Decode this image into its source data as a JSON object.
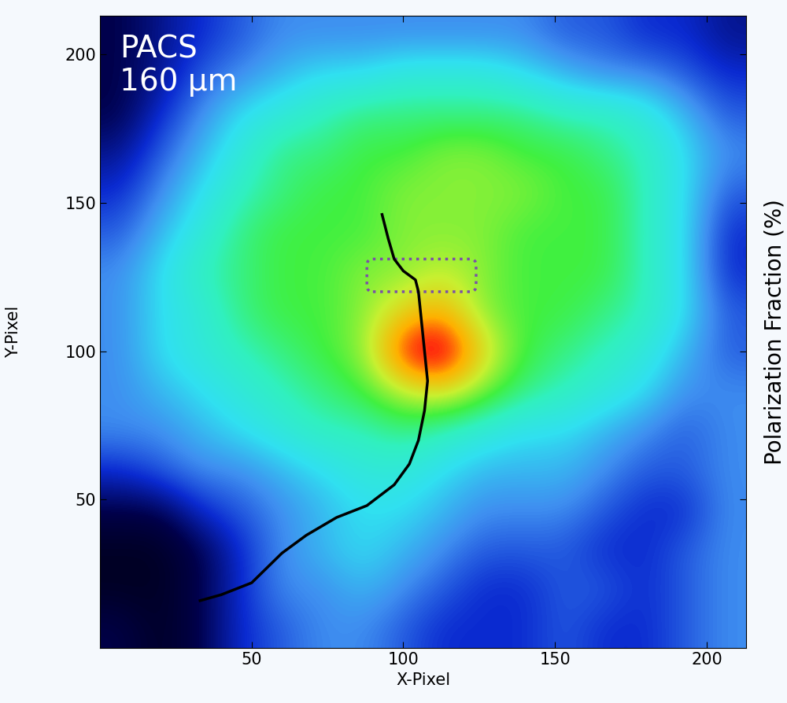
{
  "chart_data": {
    "type": "heatmap",
    "annotation": "PACS\n160 µm",
    "x_label": "X-Pixel",
    "y_label": "Y-Pixel",
    "right_label": "Polarization Fraction (%)",
    "xlim": [
      0,
      213
    ],
    "ylim": [
      0,
      213
    ],
    "xticks": [
      50,
      100,
      150,
      200
    ],
    "yticks": [
      50,
      100,
      150,
      200
    ],
    "color_range": [
      0,
      10
    ],
    "cells": [
      [
        1,
        0.5,
        1,
        2,
        2.5,
        3,
        3,
        2.5,
        2,
        2,
        2,
        2.5,
        2,
        2,
        2.5,
        3
      ],
      [
        0.5,
        0.5,
        1,
        2,
        3,
        3,
        3.5,
        3,
        2.5,
        2,
        2,
        2.5,
        2.5,
        2,
        2.5,
        3
      ],
      [
        0.5,
        0.5,
        1,
        2,
        3,
        3.5,
        4,
        3.5,
        3,
        2.5,
        2.5,
        2.5,
        2,
        2,
        2.5,
        3
      ],
      [
        1,
        1,
        2,
        2.5,
        3,
        3.5,
        4,
        4,
        3.5,
        3,
        3,
        3,
        2.5,
        2,
        2,
        3
      ],
      [
        2,
        2.5,
        3,
        3,
        3.5,
        4,
        4.5,
        4.5,
        4,
        3.5,
        3.5,
        3.5,
        3,
        2.5,
        2.5,
        3
      ],
      [
        3,
        3,
        3.5,
        4,
        4.5,
        5,
        5,
        5.5,
        5,
        4.5,
        4,
        4,
        3.5,
        3,
        2.5,
        3
      ],
      [
        3,
        3.5,
        4,
        4.5,
        5,
        5.5,
        6,
        7,
        7.5,
        6.5,
        5.5,
        5,
        4.5,
        4,
        3,
        3
      ],
      [
        3,
        4,
        4.5,
        5,
        5.5,
        6,
        6.5,
        9,
        9.5,
        7.5,
        6,
        5.5,
        5,
        4.5,
        3.5,
        2.5
      ],
      [
        3,
        4,
        4.5,
        5.5,
        6,
        6,
        6.5,
        7.5,
        8,
        6.5,
        6,
        6,
        5.5,
        5,
        4,
        2.5
      ],
      [
        3,
        4,
        5,
        5.5,
        6,
        6,
        6.5,
        6.5,
        7,
        6.5,
        6,
        6,
        6,
        5,
        4,
        2
      ],
      [
        2.5,
        3.5,
        4.5,
        5.5,
        6,
        6,
        6,
        6.5,
        6.5,
        6.5,
        6,
        6,
        6,
        5,
        4,
        2
      ],
      [
        2,
        3,
        4,
        5,
        5.5,
        6,
        6,
        6.5,
        6.5,
        6.5,
        6.5,
        6,
        6,
        5,
        4,
        2.5
      ],
      [
        1.5,
        2.5,
        3.5,
        4.5,
        5.5,
        5.5,
        6,
        6,
        6.5,
        6.5,
        6,
        6,
        5.5,
        5,
        4,
        3
      ],
      [
        1,
        2,
        3,
        4,
        4.5,
        5,
        5.5,
        5.5,
        5.5,
        5.5,
        5.5,
        5,
        5,
        4.5,
        3.5,
        2.5
      ],
      [
        1,
        1.5,
        2.5,
        3,
        3.5,
        4,
        4,
        4.5,
        4.5,
        4.5,
        4,
        3.5,
        3,
        3,
        2.5,
        2
      ],
      [
        1,
        1.5,
        2,
        2.5,
        3,
        3,
        3,
        3,
        3,
        3,
        3,
        2.5,
        2.5,
        2,
        2,
        1.5
      ]
    ],
    "line": {
      "color": "#000000",
      "x": [
        93,
        95,
        97,
        100,
        104,
        105,
        106,
        107,
        108,
        107,
        105,
        102,
        97,
        88,
        78,
        68,
        60,
        50,
        40,
        33
      ],
      "y": [
        146,
        138,
        131,
        127,
        124,
        120,
        110,
        100,
        90,
        80,
        70,
        62,
        55,
        48,
        44,
        38,
        32,
        22,
        18,
        16
      ]
    },
    "region": {
      "x": [
        88,
        124
      ],
      "y": [
        120,
        131
      ],
      "color": "#7b4fa8",
      "line_style": "dotted"
    }
  }
}
